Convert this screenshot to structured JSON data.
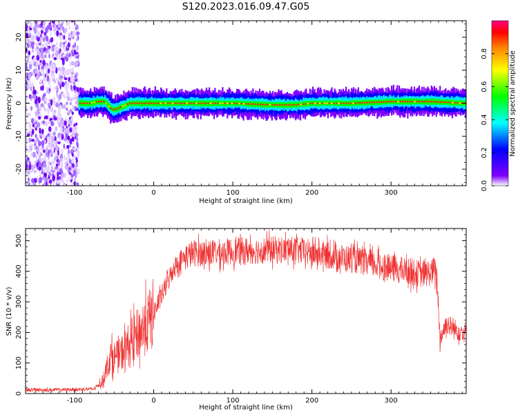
{
  "figure": {
    "title": "S120.2023.016.09.47.G05"
  },
  "chart_data": [
    {
      "type": "heatmap",
      "xlabel": "Height of straight line (km)",
      "ylabel": "Frequency (Hz)",
      "xlim": [
        -162,
        395
      ],
      "ylim": [
        -25,
        25
      ],
      "x_ticks": [
        -100,
        0,
        100,
        200,
        300
      ],
      "y_ticks": [
        -20,
        -10,
        0,
        10,
        20
      ],
      "colorbar": {
        "label": "Normalized spectral amplitude",
        "range": [
          0,
          1
        ],
        "ticks": [
          0.0,
          0.2,
          0.4,
          0.6,
          0.8
        ],
        "colormap": [
          "#ffffff",
          "#8000ff",
          "#0000ff",
          "#00ffff",
          "#00ff00",
          "#ffff00",
          "#ff8000",
          "#ff0000",
          "#ff0080"
        ]
      },
      "ridge": {
        "x": [
          -95,
          -80,
          -70,
          -62,
          -55,
          -50,
          -40,
          -30,
          -20,
          0,
          50,
          100,
          150,
          180,
          200,
          250,
          300,
          350,
          395
        ],
        "frequency_hz": [
          0,
          0,
          0.5,
          0.5,
          -1.5,
          -2,
          -1,
          0,
          0,
          0,
          0,
          0,
          -0.5,
          -0.5,
          0,
          0,
          0.5,
          0.5,
          0
        ]
      },
      "noise_region_x": [
        -162,
        -95
      ]
    },
    {
      "type": "line",
      "xlabel": "Height of straight line (km)",
      "ylabel": "SNR (10 * v/v)",
      "xlim": [
        -162,
        395
      ],
      "ylim": [
        0,
        540
      ],
      "x_ticks": [
        -100,
        0,
        100,
        200,
        300
      ],
      "y_ticks": [
        0,
        100,
        200,
        300,
        400,
        500
      ],
      "color": "#f03030",
      "envelope": {
        "x": [
          -162,
          -120,
          -75,
          -65,
          -55,
          -45,
          -35,
          -25,
          -15,
          -5,
          5,
          15,
          25,
          35,
          50,
          75,
          100,
          125,
          150,
          175,
          200,
          225,
          250,
          275,
          300,
          320,
          340,
          355,
          358,
          362,
          370,
          380,
          395
        ],
        "snr": [
          12,
          12,
          15,
          40,
          120,
          120,
          150,
          180,
          210,
          240,
          290,
          350,
          410,
          440,
          460,
          460,
          465,
          468,
          470,
          470,
          460,
          450,
          440,
          425,
          410,
          400,
          390,
          400,
          380,
          180,
          230,
          210,
          200
        ]
      }
    }
  ]
}
